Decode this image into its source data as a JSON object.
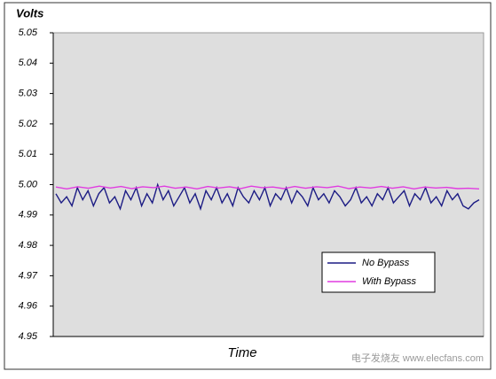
{
  "chart_data": {
    "type": "line",
    "y_label": "Volts",
    "x_label": "Time",
    "ylim": [
      4.95,
      5.05
    ],
    "yticks": [
      {
        "value": 4.95,
        "label": "4.95"
      },
      {
        "value": 4.96,
        "label": "4.96"
      },
      {
        "value": 4.97,
        "label": "4.97"
      },
      {
        "value": 4.98,
        "label": "4.98"
      },
      {
        "value": 4.99,
        "label": "4.99"
      },
      {
        "value": 5.0,
        "label": "5.00"
      },
      {
        "value": 5.01,
        "label": "5.01"
      },
      {
        "value": 5.02,
        "label": "5.02"
      },
      {
        "value": 5.03,
        "label": "5.03"
      },
      {
        "value": 5.04,
        "label": "5.04"
      },
      {
        "value": 5.05,
        "label": "5.05"
      }
    ],
    "legend": "lower right",
    "watermark": "电子发烧友 www.elecfans.com",
    "series": [
      {
        "name": "No Bypass",
        "color": "#1c1c84",
        "values": [
          4.997,
          4.994,
          4.996,
          4.993,
          4.999,
          4.995,
          4.998,
          4.993,
          4.997,
          4.999,
          4.994,
          4.996,
          4.992,
          4.998,
          4.995,
          4.999,
          4.993,
          4.997,
          4.994,
          5.0,
          4.995,
          4.998,
          4.993,
          4.996,
          4.999,
          4.994,
          4.997,
          4.992,
          4.998,
          4.995,
          4.999,
          4.994,
          4.997,
          4.993,
          4.999,
          4.996,
          4.994,
          4.998,
          4.995,
          4.999,
          4.993,
          4.997,
          4.995,
          4.999,
          4.994,
          4.998,
          4.996,
          4.993,
          4.999,
          4.995,
          4.997,
          4.994,
          4.998,
          4.996,
          4.993,
          4.995,
          4.999,
          4.994,
          4.996,
          4.993,
          4.997,
          4.995,
          4.999,
          4.994,
          4.996,
          4.998,
          4.993,
          4.997,
          4.995,
          4.999,
          4.994,
          4.996,
          4.993,
          4.998,
          4.995,
          4.997,
          4.993,
          4.992,
          4.994,
          4.995
        ]
      },
      {
        "name": "With Bypass",
        "color": "#e03ce0",
        "values": [
          4.9992,
          4.9986,
          4.9993,
          4.9988,
          4.9995,
          4.9989,
          4.9994,
          4.9987,
          4.9993,
          4.999,
          4.9995,
          4.9988,
          4.9992,
          4.9986,
          4.9994,
          4.9989,
          4.9993,
          4.9987,
          4.9995,
          4.999,
          4.9992,
          4.9987,
          4.9994,
          4.9988,
          4.9993,
          4.999,
          4.9995,
          4.9987,
          4.9992,
          4.9989,
          4.9994,
          4.9988,
          4.9993,
          4.9986,
          4.9992,
          4.9989,
          4.9991,
          4.9987,
          4.9988,
          4.9986
        ]
      }
    ]
  }
}
